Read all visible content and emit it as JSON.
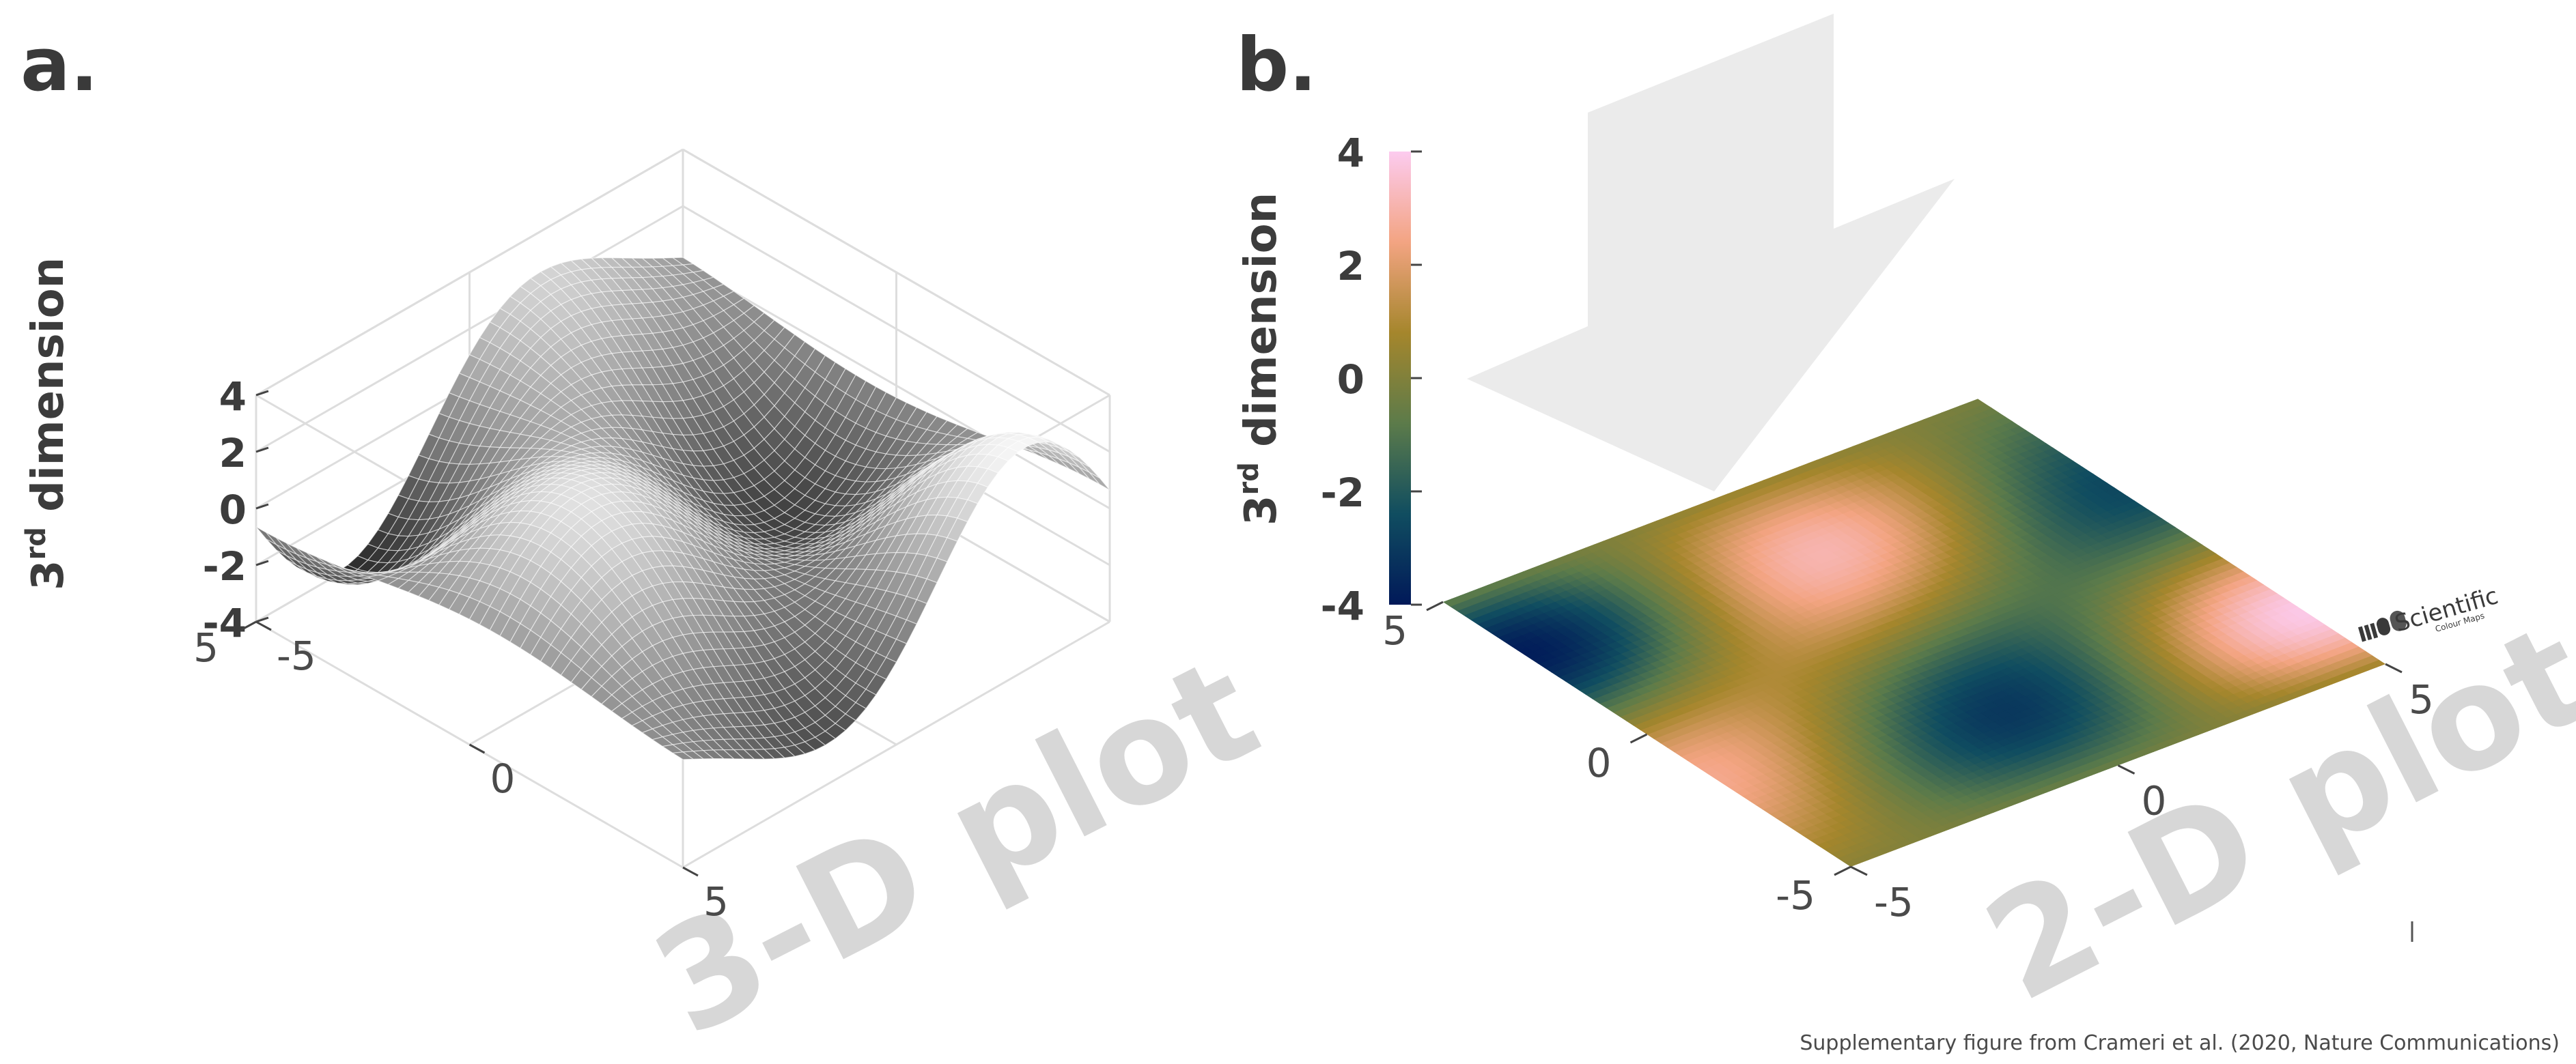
{
  "chart_data": [
    {
      "panel": "a.",
      "type": "surface-3d",
      "zlabel_main": "3",
      "zlabel_sup": "rd",
      "zlabel_rest": " dimension",
      "x_ticks": [
        -5,
        0,
        5
      ],
      "y_ticks": [
        -5,
        0,
        5
      ],
      "z_ticks": [
        -4,
        -2,
        0,
        2,
        4
      ],
      "x_tick_labels": [
        "-5",
        "0",
        "5"
      ],
      "y_tick_labels": [
        "-5",
        "0",
        "5"
      ],
      "z_tick_labels": [
        "-4",
        "-2",
        "0",
        "2",
        "4"
      ],
      "xlim": [
        -5,
        5
      ],
      "ylim": [
        -5,
        5
      ],
      "zlim": [
        -4,
        4
      ],
      "colormap": "grayscale",
      "watermark": "3-D plot"
    },
    {
      "panel": "b.",
      "type": "heatmap",
      "zlabel_main": "3",
      "zlabel_sup": "rd",
      "zlabel_rest": " dimension",
      "x_ticks": [
        -5,
        0,
        5
      ],
      "y_ticks": [
        -5,
        0,
        5
      ],
      "x_tick_labels": [
        "-5",
        "0",
        "5"
      ],
      "y_tick_labels": [
        "-5",
        "0",
        "5"
      ],
      "colorbar_ticks": [
        4,
        2,
        0,
        -2,
        -4
      ],
      "colorbar_tick_labels": [
        "4",
        "2",
        "0",
        "-2",
        "-4"
      ],
      "xlim": [
        -5,
        5
      ],
      "ylim": [
        -5,
        5
      ],
      "clim": [
        -4,
        4
      ],
      "colormap": "batlow",
      "colormap_stops": [
        "#011959",
        "#104d60",
        "#5c7b4a",
        "#a5862c",
        "#f3a482",
        "#fccbef"
      ],
      "watermark": "2-D plot"
    }
  ],
  "credit": "Supplementary figure from Crameri et al. (2020, Nature Communications)",
  "logo": {
    "title": "Scientific",
    "subtitle": "Colour Maps"
  }
}
